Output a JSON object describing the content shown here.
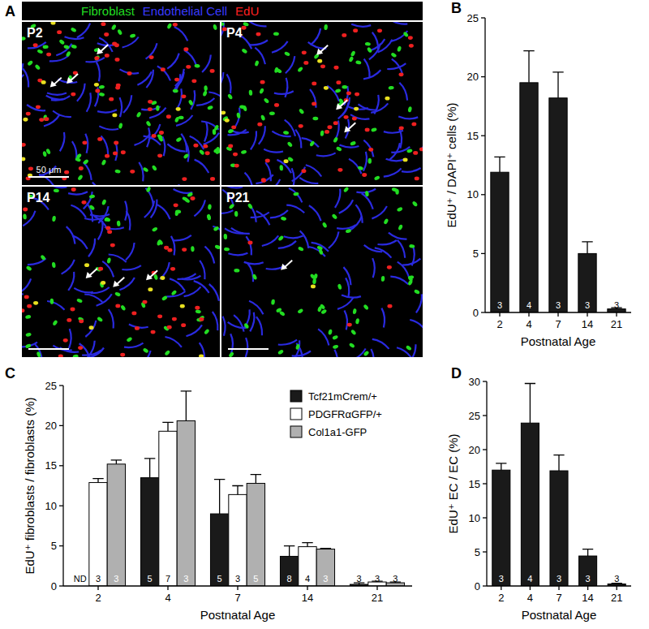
{
  "image_panel": {
    "label": "A",
    "legend": [
      {
        "text": "Fibroblast",
        "color": "#22dd22"
      },
      {
        "text": "Endothelial Cell",
        "color": "#3a3aff"
      },
      {
        "text": "EdU",
        "color": "#ff2020"
      }
    ],
    "images": [
      {
        "label": "P2",
        "scale_bar": "50 μm"
      },
      {
        "label": "P4"
      },
      {
        "label": "P14"
      },
      {
        "label": "P21"
      }
    ]
  },
  "chart_data": [
    {
      "type": "bar",
      "annotations": [
        "B"
      ],
      "categories": [
        "2",
        "4",
        "7",
        "14",
        "21"
      ],
      "values": [
        11.9,
        19.5,
        18.2,
        5.0,
        0.3
      ],
      "errors": [
        1.3,
        2.7,
        2.2,
        1.0,
        0.1
      ],
      "n": [
        3,
        4,
        3,
        3,
        3
      ],
      "color": "#1a1a1a",
      "x_label": "Postnatal Age",
      "y_label": "EdU⁺ / DAPI⁺ cells (%)",
      "ylim": [
        0,
        25
      ],
      "yticks": [
        0,
        5,
        10,
        15,
        20,
        25
      ],
      "grid": false
    },
    {
      "type": "bar",
      "annotations": [
        "C"
      ],
      "categories": [
        "2",
        "4",
        "7",
        "14",
        "21"
      ],
      "series": [
        {
          "name": "Tcf21mCrem/+",
          "color": "#1a1a1a",
          "values": [
            null,
            13.5,
            9.0,
            3.7,
            0.2
          ],
          "errors": [
            null,
            2.4,
            4.3,
            1.3,
            0.2
          ],
          "n": [
            "ND",
            5,
            5,
            8,
            3
          ]
        },
        {
          "name": "PDGFRαGFP/+",
          "color": "#ffffff",
          "values": [
            12.9,
            19.3,
            11.4,
            4.9,
            0.5
          ],
          "errors": [
            0.5,
            1.1,
            1.1,
            0.5,
            0.1
          ],
          "n": [
            3,
            7,
            3,
            4,
            3
          ]
        },
        {
          "name": "Col1a1-GFP",
          "color": "#b0b0b0",
          "values": [
            15.2,
            20.6,
            12.8,
            4.6,
            0.4
          ],
          "errors": [
            0.5,
            3.7,
            1.1,
            0.1,
            0.1
          ],
          "n": [
            3,
            3,
            5,
            3,
            3
          ]
        }
      ],
      "x_label": "Postnatal Age",
      "y_label": "EdU⁺ fibroblasts / fibroblasts (%)",
      "ylim": [
        0,
        25
      ],
      "yticks": [
        0,
        5,
        10,
        15,
        20,
        25
      ],
      "grid": false,
      "legend": "top-right"
    },
    {
      "type": "bar",
      "annotations": [
        "D"
      ],
      "categories": [
        "2",
        "4",
        "7",
        "14",
        "21"
      ],
      "values": [
        17.0,
        23.9,
        16.9,
        4.4,
        0.3
      ],
      "errors": [
        1.0,
        5.8,
        2.3,
        1.0,
        0.1
      ],
      "n": [
        3,
        4,
        3,
        3,
        3
      ],
      "color": "#1a1a1a",
      "x_label": "Postnatal Age",
      "y_label": "EdU⁺ EC / EC (%)",
      "ylim": [
        0,
        30
      ],
      "yticks": [
        0,
        5,
        10,
        15,
        20,
        25,
        30
      ],
      "grid": false
    }
  ]
}
